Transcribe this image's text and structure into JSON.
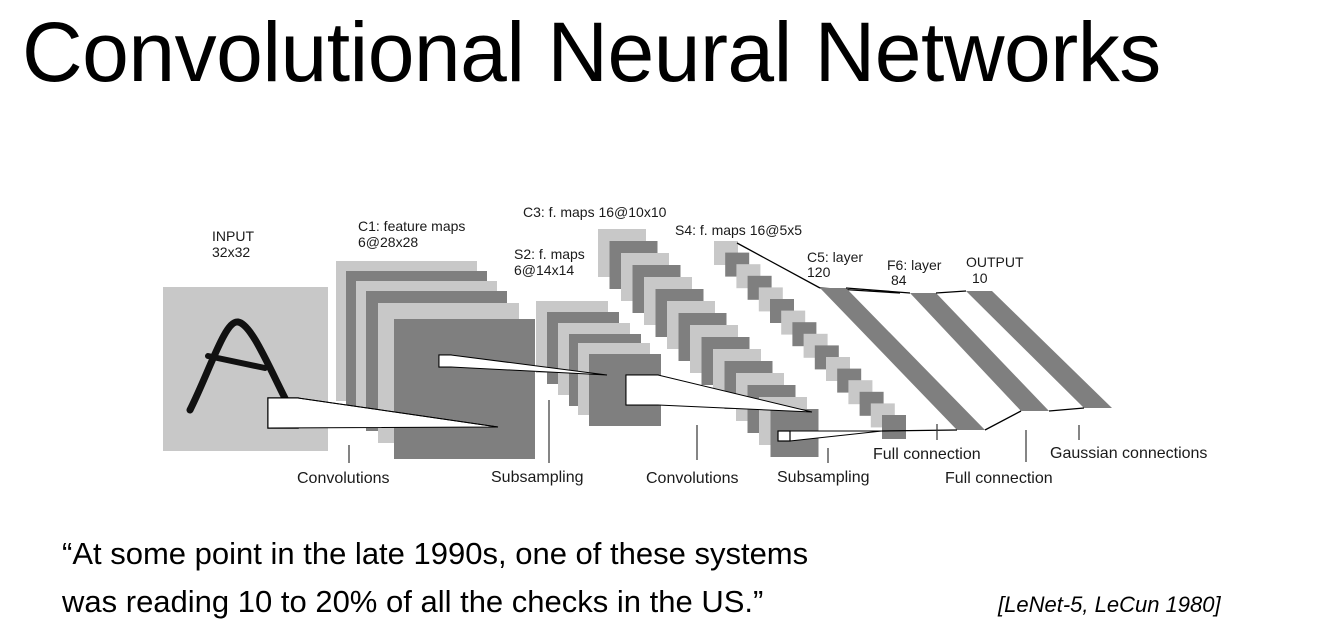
{
  "slide": {
    "title": "Convolutional Neural Networks",
    "quote_line1": "“At some point in the late 1990s, one of these systems",
    "quote_line2": "was reading 10 to 20% of all the checks in the US.”",
    "citation": "[LeNet-5, LeCun 1980]"
  },
  "diagram": {
    "layers": {
      "input": {
        "name": "INPUT",
        "size": "32x32"
      },
      "c1": {
        "name": "C1: feature maps",
        "size": "6@28x28"
      },
      "s2": {
        "name": "S2: f. maps",
        "size": "6@14x14"
      },
      "c3": {
        "name": "C3: f. maps 16@10x10"
      },
      "s4": {
        "name": "S4: f. maps 16@5x5"
      },
      "c5": {
        "name": "C5: layer",
        "size": "120"
      },
      "f6": {
        "name": "F6: layer",
        "size": "84"
      },
      "output": {
        "name": "OUTPUT",
        "size": "10"
      }
    },
    "operations": {
      "conv1": "Convolutions",
      "sub1": "Subsampling",
      "conv2": "Convolutions",
      "sub2": "Subsampling",
      "full1": "Full connection",
      "full2": "Full connection",
      "gaussian": "Gaussian connections"
    }
  },
  "colors": {
    "light_gray": "#c8c8c8",
    "dark_gray": "#7f7f7f"
  }
}
